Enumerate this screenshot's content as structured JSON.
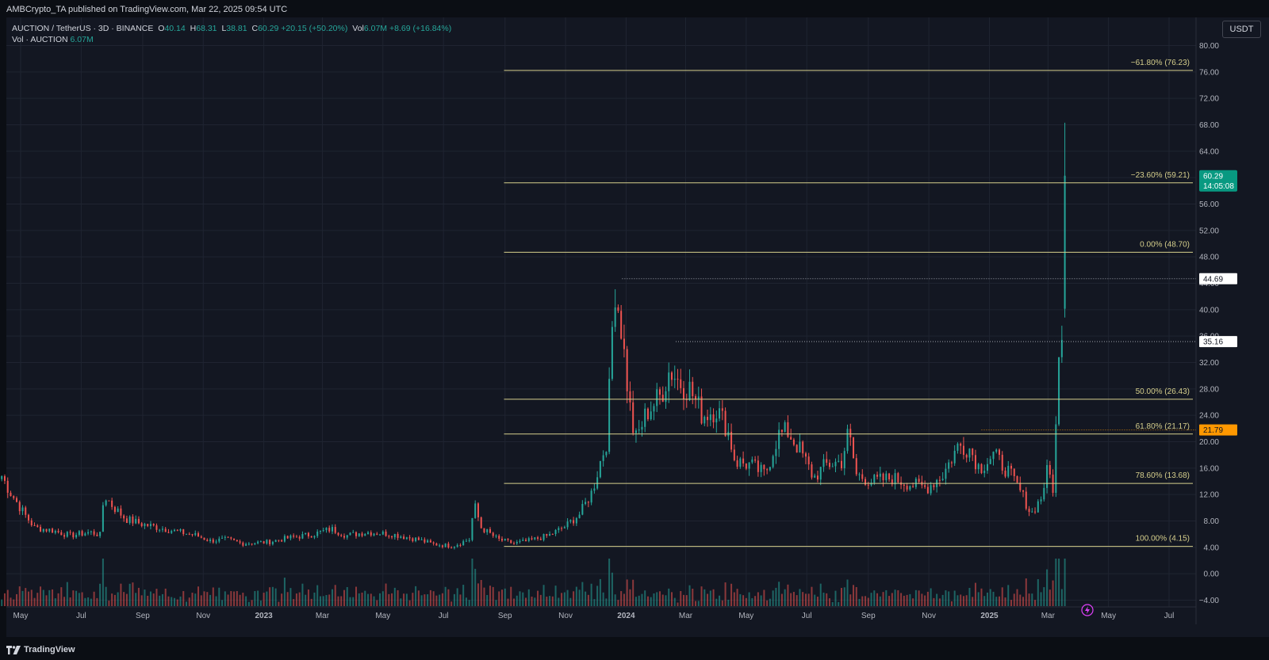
{
  "header": {
    "published": "AMBCrypto_TA published on TradingView.com, Mar 22, 2025 09:54 UTC"
  },
  "legend": {
    "symbol": "AUCTION / TetherUS · 3D · BINANCE",
    "open_label": "O",
    "open": "40.14",
    "high_label": "H",
    "high": "68.31",
    "low_label": "L",
    "low": "38.81",
    "close_label": "C",
    "close": "60.29",
    "change": "+20.15 (+50.20%)",
    "vol_label": "Vol",
    "vol": "6.07M",
    "vol_change": "+8.69 (+16.84%)",
    "vol_row_label": "Vol · AUCTION",
    "vol_row_value": "6.07M"
  },
  "currency": "USDT",
  "footer": {
    "brand": "TradingView"
  },
  "colors": {
    "up": "#26a69a",
    "down": "#ef5350",
    "fib": "#d6cf8c",
    "grid": "#1f2431",
    "text": "#d1d4dc",
    "price_label": "#089981",
    "level_label": "#ff9800"
  },
  "chart_data": {
    "type": "candlestick",
    "title": "AUCTION / TetherUS · 3D · BINANCE",
    "y_ticks": [
      "80.00",
      "76.00",
      "72.00",
      "68.00",
      "64.00",
      "60.00",
      "56.00",
      "52.00",
      "48.00",
      "44.00",
      "40.00",
      "36.00",
      "32.00",
      "28.00",
      "24.00",
      "20.00",
      "16.00",
      "12.00",
      "8.00",
      "4.00",
      "0.00",
      "−4.00"
    ],
    "x_ticks": [
      "May",
      "Jul",
      "Sep",
      "Nov",
      "2023",
      "Mar",
      "May",
      "Jul",
      "Sep",
      "Nov",
      "2024",
      "Mar",
      "May",
      "Jul",
      "Sep",
      "Nov",
      "2025",
      "Mar",
      "May",
      "Jul"
    ],
    "ylim": [
      -4,
      80
    ],
    "fib_levels": [
      {
        "label": "−61.80% (76.23)",
        "value": 76.23
      },
      {
        "label": "−23.60% (59.21)",
        "value": 59.21
      },
      {
        "label": "0.00% (48.70)",
        "value": 48.7
      },
      {
        "label": "50.00% (26.43)",
        "value": 26.43
      },
      {
        "label": "61.80% (21.17)",
        "value": 21.17
      },
      {
        "label": "78.60% (13.68)",
        "value": 13.68
      },
      {
        "label": "100.00% (4.15)",
        "value": 4.15
      }
    ],
    "price_markers": [
      {
        "label": "44.69",
        "value": 44.69,
        "style": "white"
      },
      {
        "label": "35.16",
        "value": 35.16,
        "style": "white"
      },
      {
        "label": "21.79",
        "value": 21.79,
        "style": "orange"
      }
    ],
    "last_price": {
      "price": "60.29",
      "countdown": "14:05:08",
      "value": 60.29
    },
    "price_path": [
      [
        "2022-04-12",
        14.8
      ],
      [
        "2022-04-20",
        12.5
      ],
      [
        "2022-05-05",
        9.0
      ],
      [
        "2022-05-15",
        7.0
      ],
      [
        "2022-06-01",
        6.6
      ],
      [
        "2022-06-20",
        5.8
      ],
      [
        "2022-07-10",
        6.3
      ],
      [
        "2022-07-20",
        5.9
      ],
      [
        "2022-07-24",
        12.0
      ],
      [
        "2022-08-02",
        10.2
      ],
      [
        "2022-08-15",
        8.3
      ],
      [
        "2022-09-01",
        7.5
      ],
      [
        "2022-09-20",
        6.9
      ],
      [
        "2022-10-05",
        6.4
      ],
      [
        "2022-10-25",
        5.8
      ],
      [
        "2022-11-08",
        5.0
      ],
      [
        "2022-11-25",
        5.2
      ],
      [
        "2022-12-10",
        4.6
      ],
      [
        "2023-01-05",
        4.8
      ],
      [
        "2023-01-25",
        5.4
      ],
      [
        "2023-02-20",
        6.0
      ],
      [
        "2023-03-10",
        6.8
      ],
      [
        "2023-03-25",
        5.8
      ],
      [
        "2023-04-15",
        6.3
      ],
      [
        "2023-05-10",
        6.0
      ],
      [
        "2023-06-05",
        5.2
      ],
      [
        "2023-06-20",
        4.5
      ],
      [
        "2023-07-10",
        4.2
      ],
      [
        "2023-07-27",
        5.2
      ],
      [
        "2023-08-01",
        10.5
      ],
      [
        "2023-08-08",
        7.0
      ],
      [
        "2023-08-25",
        5.2
      ],
      [
        "2023-09-10",
        4.6
      ],
      [
        "2023-09-25",
        5.0
      ],
      [
        "2023-10-15",
        5.8
      ],
      [
        "2023-11-01",
        7.2
      ],
      [
        "2023-11-15",
        9.0
      ],
      [
        "2023-11-28",
        12.5
      ],
      [
        "2023-12-05",
        16.5
      ],
      [
        "2023-12-12",
        20.0
      ],
      [
        "2023-12-16",
        30.0
      ],
      [
        "2023-12-20",
        44.6
      ],
      [
        "2023-12-27",
        37.5
      ],
      [
        "2024-01-04",
        26.0
      ],
      [
        "2024-01-10",
        20.0
      ],
      [
        "2024-01-22",
        24.5
      ],
      [
        "2024-02-05",
        27.0
      ],
      [
        "2024-02-14",
        31.0
      ],
      [
        "2024-02-24",
        29.0
      ],
      [
        "2024-03-05",
        28.0
      ],
      [
        "2024-03-18",
        24.0
      ],
      [
        "2024-04-01",
        25.0
      ],
      [
        "2024-04-12",
        22.0
      ],
      [
        "2024-04-20",
        17.0
      ],
      [
        "2024-05-05",
        16.5
      ],
      [
        "2024-05-20",
        15.0
      ],
      [
        "2024-06-02",
        21.0
      ],
      [
        "2024-06-12",
        21.5
      ],
      [
        "2024-06-25",
        18.5
      ],
      [
        "2024-07-08",
        14.5
      ],
      [
        "2024-07-20",
        16.5
      ],
      [
        "2024-08-05",
        17.0
      ],
      [
        "2024-08-12",
        21.5
      ],
      [
        "2024-08-20",
        15.0
      ],
      [
        "2024-09-05",
        14.0
      ],
      [
        "2024-09-25",
        14.5
      ],
      [
        "2024-10-15",
        13.5
      ],
      [
        "2024-10-30",
        13.0
      ],
      [
        "2024-11-15",
        15.0
      ],
      [
        "2024-12-01",
        19.5
      ],
      [
        "2024-12-12",
        19.0
      ],
      [
        "2024-12-22",
        16.0
      ],
      [
        "2025-01-05",
        18.0
      ],
      [
        "2025-01-20",
        15.5
      ],
      [
        "2025-02-03",
        12.0
      ],
      [
        "2025-02-12",
        9.0
      ],
      [
        "2025-02-22",
        11.5
      ],
      [
        "2025-03-01",
        16.0
      ],
      [
        "2025-03-06",
        13.0
      ],
      [
        "2025-03-09",
        22.0
      ],
      [
        "2025-03-13",
        35.0
      ],
      [
        "2025-03-16",
        40.1
      ],
      [
        "2025-03-19",
        60.3
      ]
    ],
    "volume_note": "volume histogram at bottom, same colors as candles"
  }
}
